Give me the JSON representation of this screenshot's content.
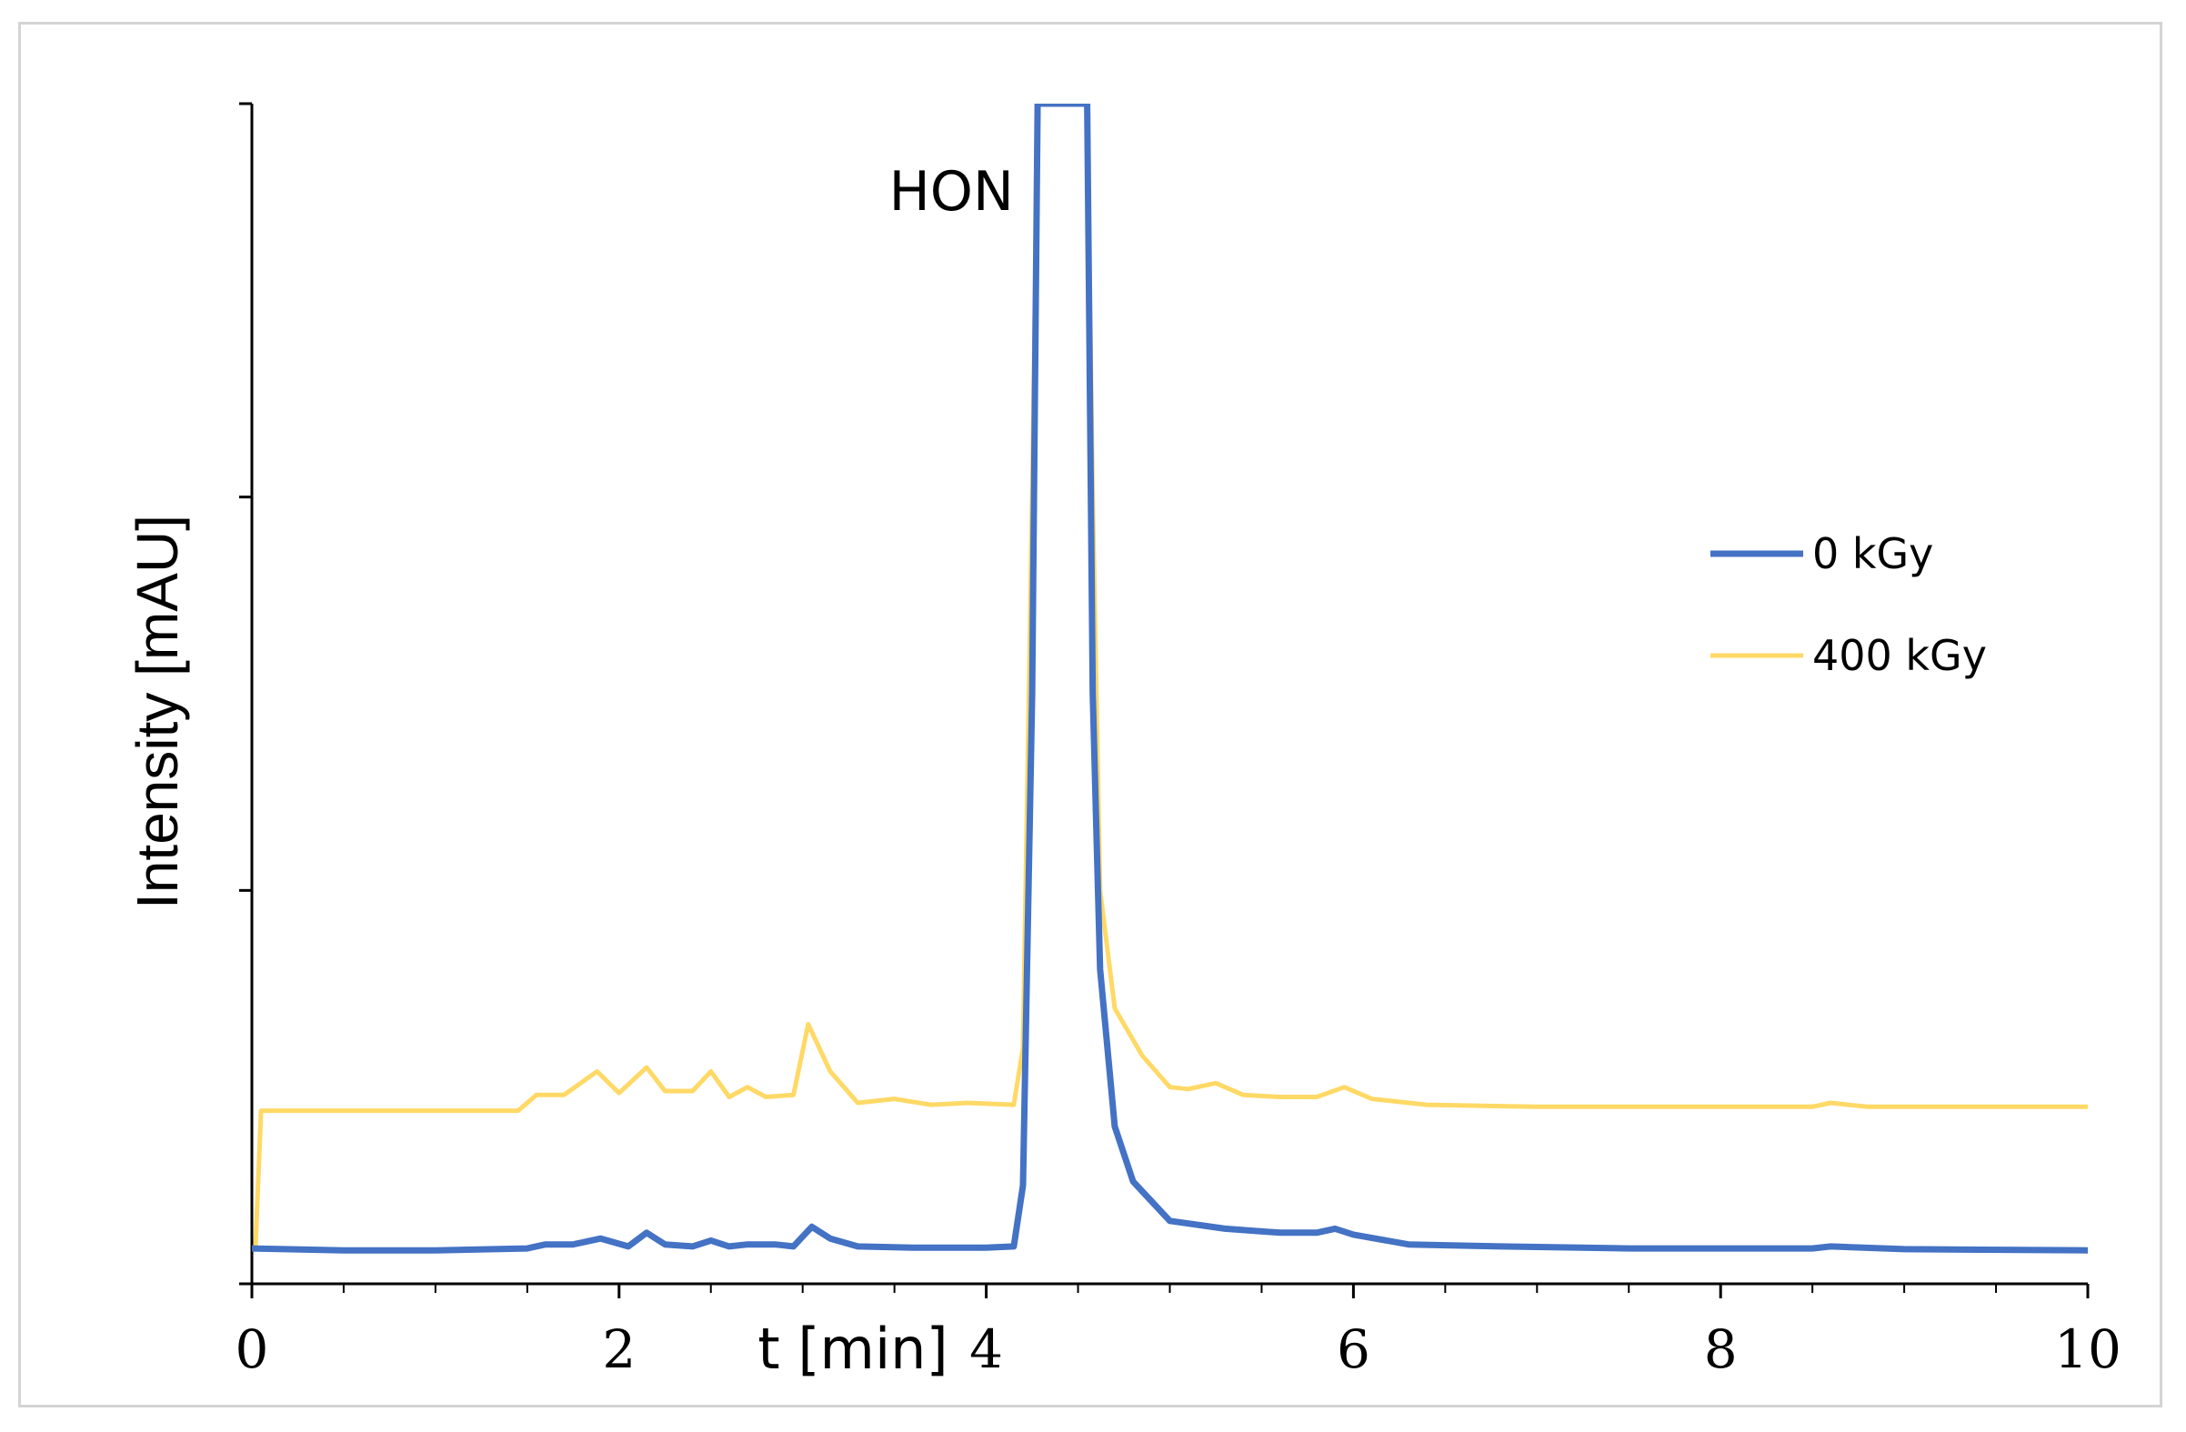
{
  "chart_data": {
    "type": "line",
    "xlabel": "t [min]",
    "ylabel": "Intensity [mAU]",
    "xlim": [
      0,
      10
    ],
    "ylim": [
      0,
      30
    ],
    "x_ticks": [
      "0",
      "2",
      "4",
      "6",
      "8",
      "10"
    ],
    "y_tick_labels_shown": false,
    "grid": false,
    "legend": "right",
    "annotations": [
      {
        "text": "HON",
        "x": 4.4,
        "y": 28.3
      }
    ],
    "series": [
      {
        "name": "0 kGy",
        "color": "#4472C4",
        "points": [
          [
            0,
            0.9
          ],
          [
            0.5,
            0.85
          ],
          [
            1.0,
            0.85
          ],
          [
            1.5,
            0.9
          ],
          [
            1.6,
            1.0
          ],
          [
            1.75,
            1.0
          ],
          [
            1.9,
            1.15
          ],
          [
            2.05,
            0.95
          ],
          [
            2.15,
            1.3
          ],
          [
            2.25,
            1.0
          ],
          [
            2.4,
            0.95
          ],
          [
            2.5,
            1.1
          ],
          [
            2.6,
            0.95
          ],
          [
            2.7,
            1.0
          ],
          [
            2.85,
            1.0
          ],
          [
            2.95,
            0.95
          ],
          [
            3.05,
            1.45
          ],
          [
            3.15,
            1.15
          ],
          [
            3.3,
            0.95
          ],
          [
            3.6,
            0.92
          ],
          [
            4.0,
            0.92
          ],
          [
            4.15,
            0.95
          ],
          [
            4.2,
            2.5
          ],
          [
            4.25,
            15
          ],
          [
            4.28,
            30
          ],
          [
            4.55,
            30
          ],
          [
            4.58,
            15
          ],
          [
            4.62,
            8.0
          ],
          [
            4.7,
            4.0
          ],
          [
            4.8,
            2.6
          ],
          [
            5.0,
            1.6
          ],
          [
            5.3,
            1.4
          ],
          [
            5.6,
            1.3
          ],
          [
            5.8,
            1.3
          ],
          [
            5.9,
            1.4
          ],
          [
            6.0,
            1.25
          ],
          [
            6.3,
            1.0
          ],
          [
            6.8,
            0.95
          ],
          [
            7.5,
            0.9
          ],
          [
            8.5,
            0.9
          ],
          [
            8.6,
            0.95
          ],
          [
            9.0,
            0.88
          ],
          [
            10,
            0.85
          ]
        ]
      },
      {
        "name": "400 kGy",
        "color": "#FFD966",
        "points": [
          [
            0,
            0.9
          ],
          [
            0.02,
            0.95
          ],
          [
            0.05,
            4.4
          ],
          [
            0.5,
            4.4
          ],
          [
            1.0,
            4.4
          ],
          [
            1.45,
            4.4
          ],
          [
            1.55,
            4.8
          ],
          [
            1.7,
            4.8
          ],
          [
            1.88,
            5.4
          ],
          [
            2.0,
            4.85
          ],
          [
            2.15,
            5.5
          ],
          [
            2.25,
            4.9
          ],
          [
            2.4,
            4.9
          ],
          [
            2.5,
            5.4
          ],
          [
            2.6,
            4.75
          ],
          [
            2.7,
            5.0
          ],
          [
            2.8,
            4.75
          ],
          [
            2.95,
            4.8
          ],
          [
            3.03,
            6.6
          ],
          [
            3.15,
            5.4
          ],
          [
            3.3,
            4.6
          ],
          [
            3.5,
            4.7
          ],
          [
            3.7,
            4.55
          ],
          [
            3.9,
            4.6
          ],
          [
            4.15,
            4.55
          ],
          [
            4.2,
            6.0
          ],
          [
            4.25,
            20
          ],
          [
            4.28,
            30
          ],
          [
            4.55,
            30
          ],
          [
            4.58,
            20
          ],
          [
            4.62,
            10.0
          ],
          [
            4.7,
            7.0
          ],
          [
            4.85,
            5.8
          ],
          [
            5.0,
            5.0
          ],
          [
            5.1,
            4.95
          ],
          [
            5.25,
            5.1
          ],
          [
            5.4,
            4.8
          ],
          [
            5.6,
            4.75
          ],
          [
            5.8,
            4.75
          ],
          [
            5.95,
            5.0
          ],
          [
            6.1,
            4.7
          ],
          [
            6.4,
            4.55
          ],
          [
            7.0,
            4.5
          ],
          [
            8.0,
            4.5
          ],
          [
            8.5,
            4.5
          ],
          [
            8.6,
            4.6
          ],
          [
            8.8,
            4.5
          ],
          [
            10,
            4.5
          ]
        ]
      }
    ]
  }
}
